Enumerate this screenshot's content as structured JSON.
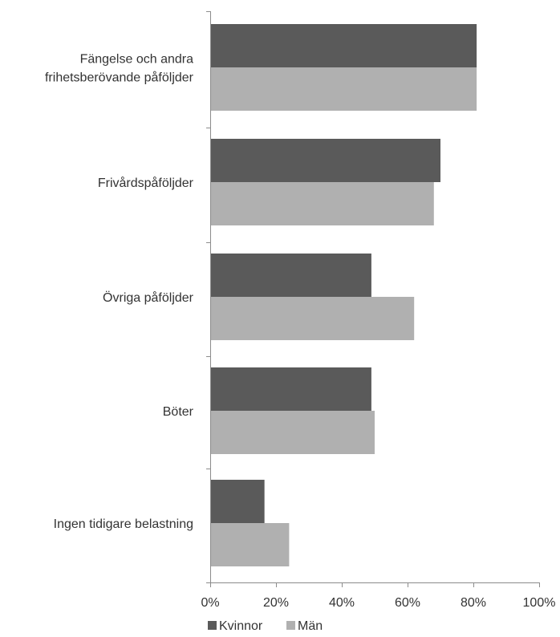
{
  "chart_data": {
    "type": "bar",
    "orientation": "horizontal",
    "categories": [
      [
        "Fängelse och andra",
        "frihetsberövande påföljder"
      ],
      [
        "Frivårdspåföljder"
      ],
      [
        "Övriga påföljder"
      ],
      [
        "Böter"
      ],
      [
        "Ingen tidigare belastning"
      ]
    ],
    "series": [
      {
        "name": "Kvinnor",
        "color": "#5a5a5a",
        "values": [
          81,
          70,
          49,
          49,
          16.5
        ]
      },
      {
        "name": "Män",
        "color": "#b0b0b0",
        "values": [
          81,
          68,
          62,
          50,
          24
        ]
      }
    ],
    "xlim": [
      0,
      100
    ],
    "xticks": [
      "0%",
      "20%",
      "40%",
      "60%",
      "80%",
      "100%"
    ],
    "grid": false,
    "legend_position": "bottom"
  }
}
